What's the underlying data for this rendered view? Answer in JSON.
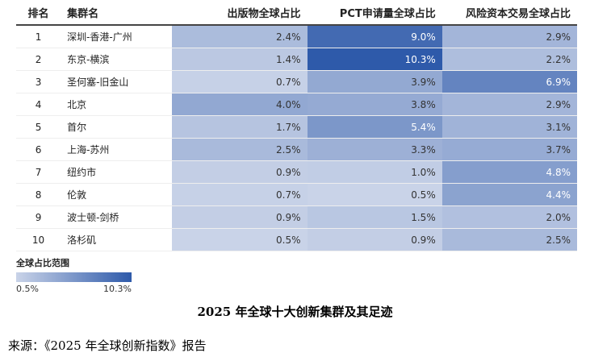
{
  "chart_data": {
    "type": "heatmap",
    "columns": [
      "排名",
      "集群名",
      "出版物全球占比",
      "PCT申请量全球占比",
      "风险资本交易全球占比"
    ],
    "rows": [
      {
        "rank": "1",
        "name": "深圳-香港-广州",
        "values": [
          2.4,
          9.0,
          2.9
        ]
      },
      {
        "rank": "2",
        "name": "东京-横滨",
        "values": [
          1.4,
          10.3,
          2.2
        ]
      },
      {
        "rank": "3",
        "name": "圣何塞-旧金山",
        "values": [
          0.7,
          3.9,
          6.9
        ]
      },
      {
        "rank": "4",
        "name": "北京",
        "values": [
          4.0,
          3.8,
          2.9
        ]
      },
      {
        "rank": "5",
        "name": "首尔",
        "values": [
          1.7,
          5.4,
          3.1
        ]
      },
      {
        "rank": "6",
        "name": "上海-苏州",
        "values": [
          2.5,
          3.3,
          3.7
        ]
      },
      {
        "rank": "7",
        "name": "纽约市",
        "values": [
          0.9,
          1.0,
          4.8
        ]
      },
      {
        "rank": "8",
        "name": "伦敦",
        "values": [
          0.7,
          0.5,
          4.4
        ]
      },
      {
        "rank": "9",
        "name": "波士顿-剑桥",
        "values": [
          0.9,
          1.5,
          2.0
        ]
      },
      {
        "rank": "10",
        "name": "洛杉矶",
        "values": [
          0.5,
          0.9,
          2.5
        ]
      }
    ],
    "unit": "%",
    "color_scale": {
      "title": "全球占比范围",
      "min": 0.5,
      "max": 10.3,
      "min_label": "0.5%",
      "max_label": "10.3%",
      "min_color": "#c9d3e8",
      "max_color": "#2e5aaa"
    }
  },
  "caption": "2025 年全球十大创新集群及其足迹",
  "source": "来源：《2025 年全球创新指数》报告"
}
